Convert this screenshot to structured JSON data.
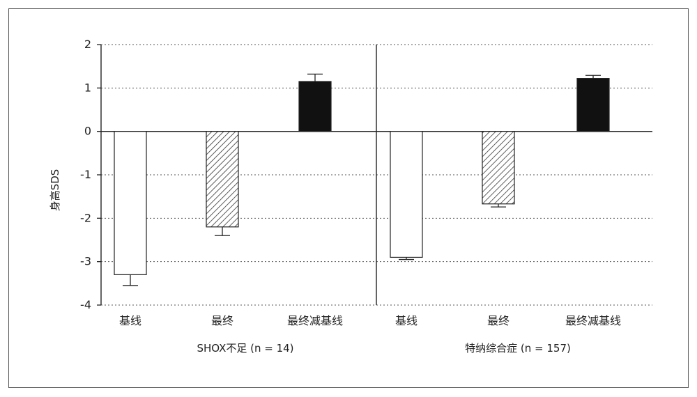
{
  "chart_data": {
    "type": "bar",
    "ylabel": "身高SDS",
    "ylim": [
      -4,
      2
    ],
    "yticks": [
      2,
      1,
      0,
      -1,
      -2,
      -3,
      -4
    ],
    "ytick_labels": [
      "2",
      "1",
      "0",
      "-1",
      "-2",
      "-3",
      "-4"
    ],
    "grid": "horizontal dotted",
    "panels": [
      {
        "group_label": "SHOX不足 (n = 14)",
        "categories": [
          "基线",
          "最终",
          "最终减基线"
        ],
        "values": [
          -3.3,
          -2.2,
          1.15
        ],
        "errors": [
          0.25,
          0.2,
          0.17
        ],
        "fills": [
          "white",
          "hatched",
          "#111111"
        ]
      },
      {
        "group_label": "特纳综合症 (n = 157)",
        "categories": [
          "基线",
          "最终",
          "最终减基线"
        ],
        "values": [
          -2.9,
          -1.67,
          1.22
        ],
        "errors": [
          0.05,
          0.07,
          0.07
        ],
        "fills": [
          "white",
          "hatched",
          "#111111"
        ]
      }
    ]
  }
}
